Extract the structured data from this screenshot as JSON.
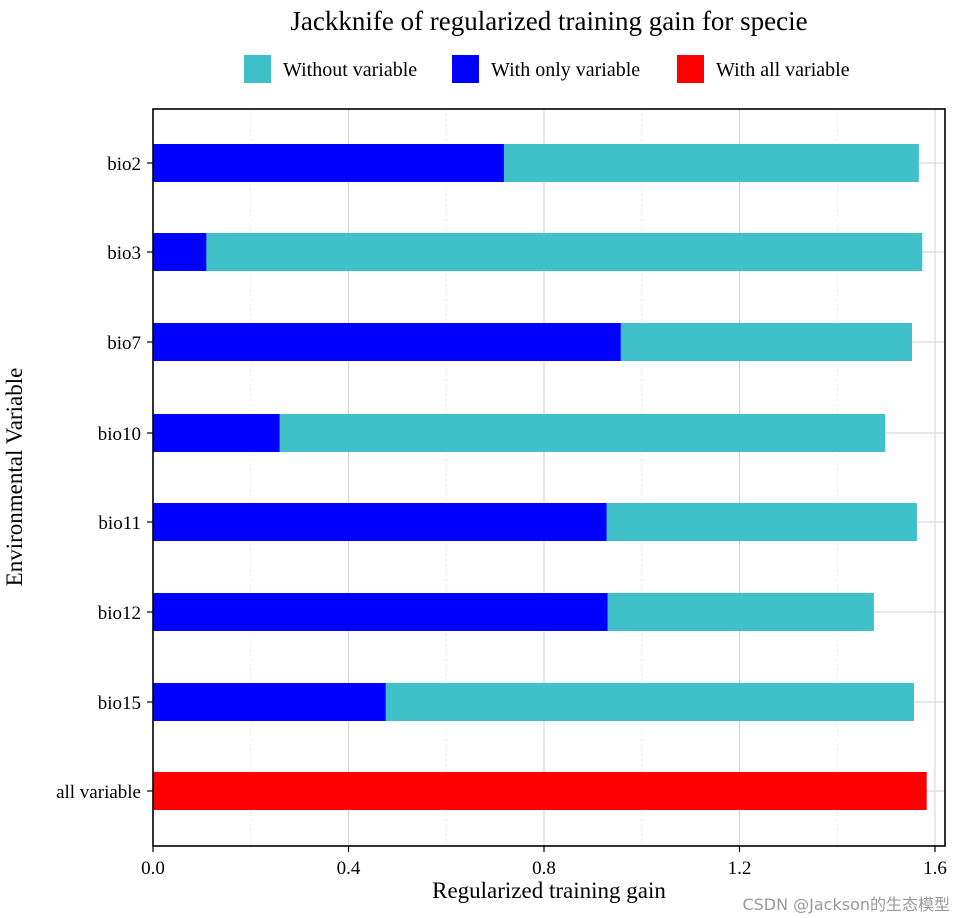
{
  "chart_data": {
    "type": "bar",
    "orientation": "horizontal",
    "stacking": "overlay",
    "title": "Jackknife of regularized training gain for specie",
    "xlabel": "Regularized training gain",
    "ylabel": "Environmental Variable",
    "xlim": [
      0,
      1.63
    ],
    "xticks": [
      0.0,
      0.4,
      0.8,
      1.2,
      1.6
    ],
    "xtick_labels": [
      "0.0",
      "0.4",
      "0.8",
      "1.2",
      "1.6"
    ],
    "categories": [
      "bio2",
      "bio3",
      "bio7",
      "bio10",
      "bio11",
      "bio12",
      "bio15",
      "all variable"
    ],
    "series": [
      {
        "name": "Without variable",
        "color": "#40C0C8",
        "values": [
          1.567,
          1.574,
          1.553,
          1.498,
          1.563,
          1.475,
          1.557,
          null
        ]
      },
      {
        "name": "With only variable",
        "color": "#0000FF",
        "values": [
          0.718,
          0.109,
          0.957,
          0.259,
          0.928,
          0.93,
          0.476,
          null
        ]
      },
      {
        "name": "With all variable",
        "color": "#FF0000",
        "values": [
          null,
          null,
          null,
          null,
          null,
          null,
          null,
          1.583
        ]
      }
    ],
    "grid": true,
    "legend_position": "top"
  },
  "watermark": "CSDN @Jackson的生态模型"
}
